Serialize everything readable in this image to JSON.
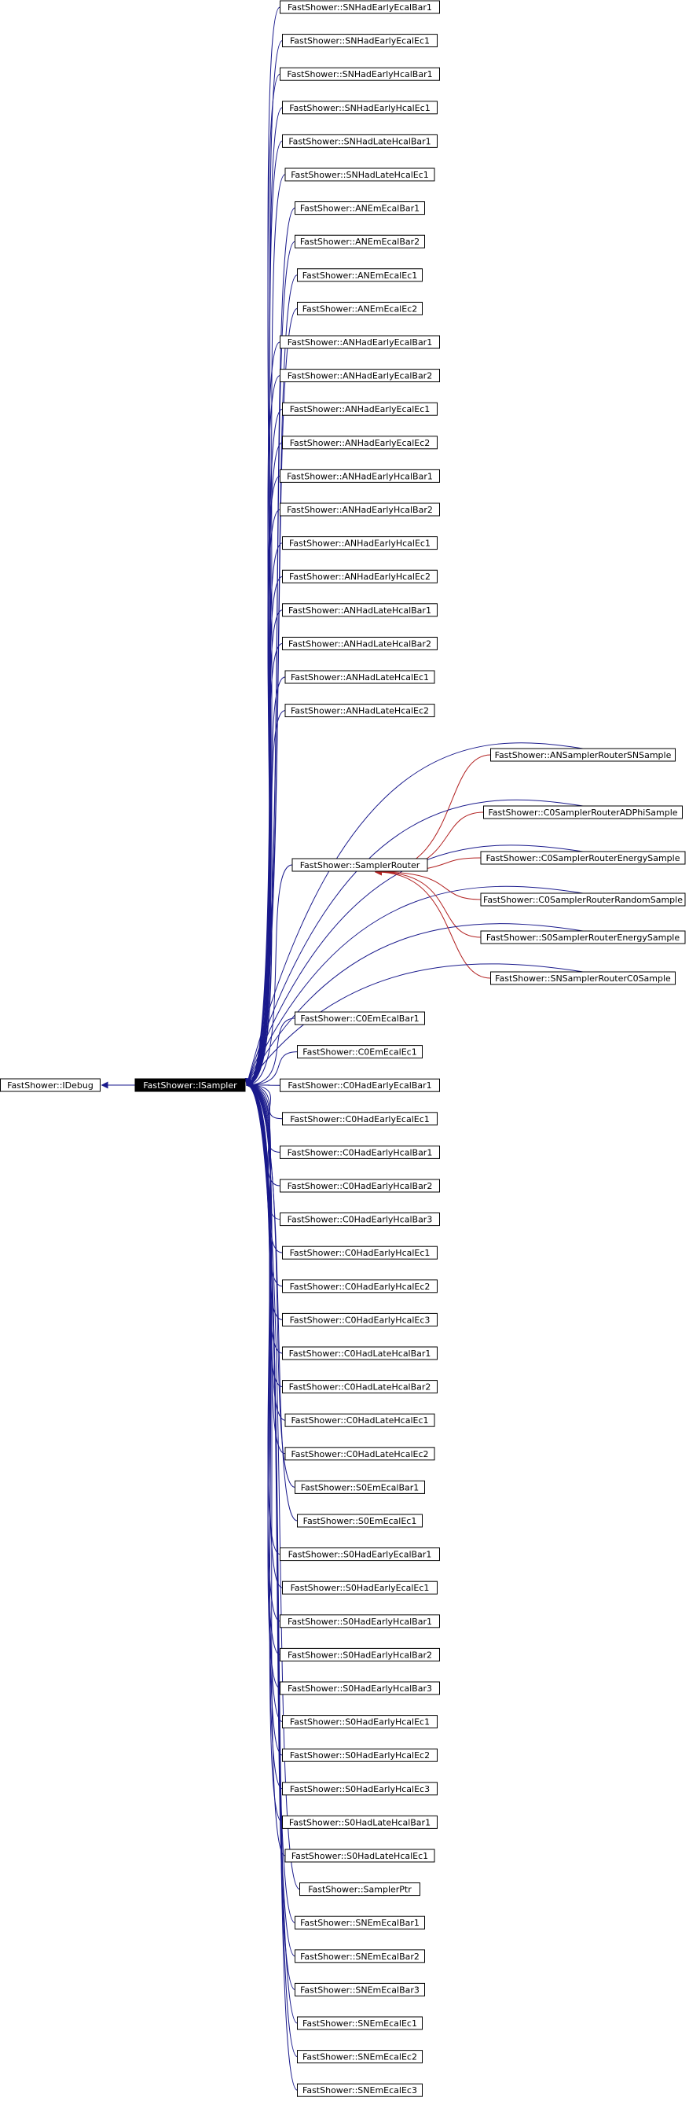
{
  "colors": {
    "inherit_edge": "#1a1a8c",
    "router_edge": "#b22222",
    "node_border": "#000000",
    "node_fill": "#ffffff",
    "root_fill": "#000000",
    "root_text": "#ffffff"
  },
  "base_node": {
    "label": "FastShower::IDebug"
  },
  "root_node": {
    "label": "FastShower::ISampler"
  },
  "router_node": {
    "label": "FastShower::SamplerRouter"
  },
  "router_children": [
    "FastShower::ANSamplerRouterSNSample",
    "FastShower::C0SamplerRouterADPhiSample",
    "FastShower::C0SamplerRouterEnergySample",
    "FastShower::C0SamplerRouterRandomSample",
    "FastShower::S0SamplerRouterEnergySample",
    "FastShower::SNSamplerRouterC0Sample"
  ],
  "derived_top": [
    "FastShower::SNHadEarlyEcalBar1",
    "FastShower::SNHadEarlyEcalEc1",
    "FastShower::SNHadEarlyHcalBar1",
    "FastShower::SNHadEarlyHcalEc1",
    "FastShower::SNHadLateHcalBar1",
    "FastShower::SNHadLateHcalEc1",
    "FastShower::ANEmEcalBar1",
    "FastShower::ANEmEcalBar2",
    "FastShower::ANEmEcalEc1",
    "FastShower::ANEmEcalEc2",
    "FastShower::ANHadEarlyEcalBar1",
    "FastShower::ANHadEarlyEcalBar2",
    "FastShower::ANHadEarlyEcalEc1",
    "FastShower::ANHadEarlyEcalEc2",
    "FastShower::ANHadEarlyHcalBar1",
    "FastShower::ANHadEarlyHcalBar2",
    "FastShower::ANHadEarlyHcalEc1",
    "FastShower::ANHadEarlyHcalEc2",
    "FastShower::ANHadLateHcalBar1",
    "FastShower::ANHadLateHcalBar2",
    "FastShower::ANHadLateHcalEc1",
    "FastShower::ANHadLateHcalEc2"
  ],
  "derived_bottom": [
    "FastShower::C0EmEcalBar1",
    "FastShower::C0EmEcalEc1",
    "FastShower::C0HadEarlyEcalBar1",
    "FastShower::C0HadEarlyEcalEc1",
    "FastShower::C0HadEarlyHcalBar1",
    "FastShower::C0HadEarlyHcalBar2",
    "FastShower::C0HadEarlyHcalBar3",
    "FastShower::C0HadEarlyHcalEc1",
    "FastShower::C0HadEarlyHcalEc2",
    "FastShower::C0HadEarlyHcalEc3",
    "FastShower::C0HadLateHcalBar1",
    "FastShower::C0HadLateHcalBar2",
    "FastShower::C0HadLateHcalEc1",
    "FastShower::C0HadLateHcalEc2",
    "FastShower::S0EmEcalBar1",
    "FastShower::S0EmEcalEc1",
    "FastShower::S0HadEarlyEcalBar1",
    "FastShower::S0HadEarlyEcalEc1",
    "FastShower::S0HadEarlyHcalBar1",
    "FastShower::S0HadEarlyHcalBar2",
    "FastShower::S0HadEarlyHcalBar3",
    "FastShower::S0HadEarlyHcalEc1",
    "FastShower::S0HadEarlyHcalEc2",
    "FastShower::S0HadEarlyHcalEc3",
    "FastShower::S0HadLateHcalBar1",
    "FastShower::S0HadLateHcalEc1",
    "FastShower::SamplerPtr",
    "FastShower::SNEmEcalBar1",
    "FastShower::SNEmEcalBar2",
    "FastShower::SNEmEcalBar3",
    "FastShower::SNEmEcalEc1",
    "FastShower::SNEmEcalEc2",
    "FastShower::SNEmEcalEc3"
  ]
}
